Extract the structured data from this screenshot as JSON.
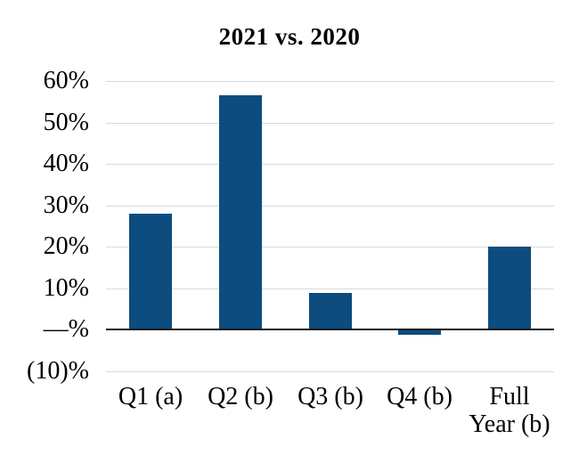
{
  "chart_data": {
    "type": "bar",
    "title": "2021 vs. 2020",
    "categories": [
      "Q1 (a)",
      "Q2 (b)",
      "Q3 (b)",
      "Q4 (b)",
      "Full Year (b)"
    ],
    "category_label_lines": [
      [
        "Q1 (a)"
      ],
      [
        "Q2 (b)"
      ],
      [
        "Q3 (b)"
      ],
      [
        "Q4 (b)"
      ],
      [
        "Full",
        "Year (b)"
      ]
    ],
    "values": [
      28,
      56.5,
      9,
      -1,
      20
    ],
    "unit": "%",
    "xlabel": "",
    "ylabel": "",
    "ylim": [
      -10,
      60
    ],
    "y_ticks": [
      {
        "value": 60,
        "label": "60%"
      },
      {
        "value": 50,
        "label": "50%"
      },
      {
        "value": 40,
        "label": "40%"
      },
      {
        "value": 30,
        "label": "30%"
      },
      {
        "value": 20,
        "label": "20%"
      },
      {
        "value": 10,
        "label": "10%"
      },
      {
        "value": 0,
        "label": "—%"
      },
      {
        "value": -10,
        "label": "(10)%"
      }
    ],
    "grid": true,
    "legend": "none",
    "colors": {
      "bar": "#0C4C7E",
      "gridline": "#D9D9D9",
      "zero_axis": "#1a1a1a",
      "text": "#000000",
      "background": "#FFFFFF"
    }
  }
}
